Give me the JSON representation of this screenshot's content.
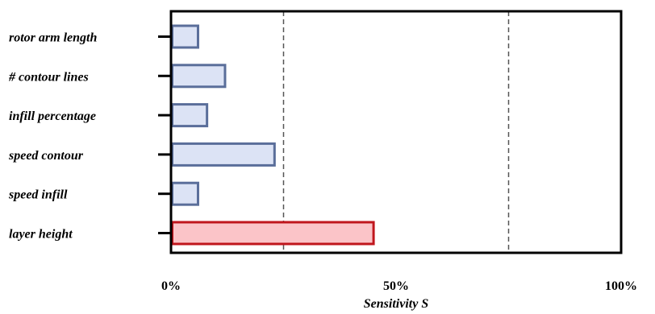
{
  "chart_data": {
    "type": "bar",
    "orientation": "horizontal",
    "categories": [
      "rotor arm length",
      "# contour lines",
      "infill percentage",
      "speed contour",
      "speed infill",
      "layer height"
    ],
    "values": [
      6,
      12,
      8,
      23,
      6,
      45
    ],
    "xlabel": "Sensitivity S",
    "xlim": [
      0,
      100
    ],
    "xticks": [
      "0%",
      "50%",
      "100%"
    ],
    "reference_lines": [
      25,
      75
    ],
    "colors": {
      "default_fill": "#dce3f5",
      "default_stroke": "#5a6e9a",
      "highlight_fill": "#fbc4c8",
      "highlight_stroke": "#c0161d"
    },
    "highlight_index": 5,
    "grid": false,
    "legend": "none"
  }
}
